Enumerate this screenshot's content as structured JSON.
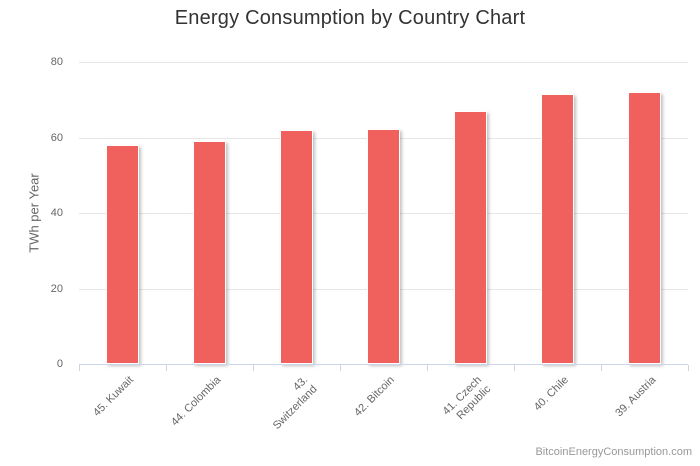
{
  "page": {
    "background": "#ffffff"
  },
  "header": {
    "title": "Energy Consumption by Country Chart"
  },
  "watermark": {
    "text": "BitcoinEnergyConsumption.com"
  },
  "chart_data": {
    "type": "bar",
    "title": "Energy Consumption by Country Chart",
    "xlabel": "",
    "ylabel": "TWh per Year",
    "ylim": [
      0,
      80
    ],
    "yticks": [
      0,
      20,
      40,
      60,
      80
    ],
    "grid": true,
    "legend": false,
    "categories": [
      "45. Kuwait",
      "44. Colombia",
      "43. Switzerland",
      "42. Bitcoin",
      "41. Czech Republic",
      "40. Chile",
      "39. Austria"
    ],
    "category_lines": [
      [
        "45. Kuwait"
      ],
      [
        "44. Colombia"
      ],
      [
        "43.",
        "Switzerland"
      ],
      [
        "42. Bitcoin"
      ],
      [
        "41. Czech",
        "Republic"
      ],
      [
        "40. Chile"
      ],
      [
        "39. Austria"
      ]
    ],
    "values": [
      57.9,
      59.0,
      61.9,
      62.2,
      67.0,
      71.5,
      72.0
    ],
    "series_name": "TWh per Year",
    "credits": "BitcoinEnergyConsumption.com"
  },
  "colors": {
    "bar": "#f0605c",
    "grid": "#e6e6e6",
    "axis": "#ccd6eb",
    "label": "#666666",
    "title": "#333333",
    "credits": "#999999"
  }
}
